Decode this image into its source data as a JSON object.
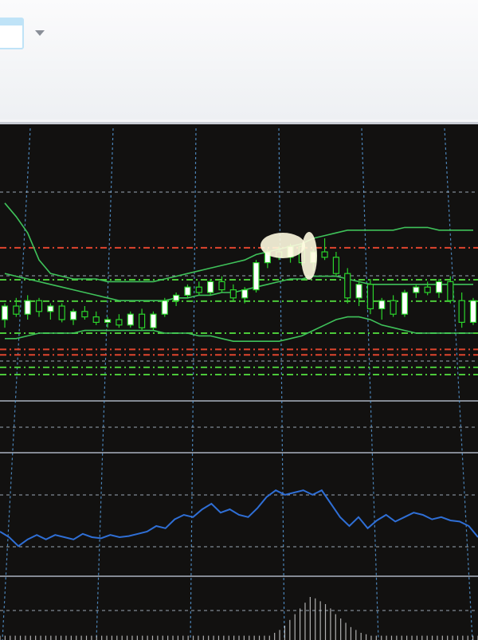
{
  "toolbar": {
    "icons": [
      "chart-window-icon",
      "chevron-down-icon"
    ]
  },
  "colors": {
    "background": "#121110",
    "grid": "#5aa0e0",
    "candle_bull": "#ffffff",
    "candle_bear": "#2bd42b",
    "bands": "#3fc25a",
    "level_red": "#e0452e",
    "level_green": "#4cc93a",
    "indicator": "#2f6fd6",
    "volume": "#d8d8d8"
  },
  "chart_data": [
    {
      "type": "candlestick",
      "title": "",
      "grid": true,
      "ylim": [
        0,
        100
      ],
      "ohlc": [
        [
          30,
          36,
          27,
          35
        ],
        [
          35,
          38,
          31,
          32
        ],
        [
          32,
          39,
          30,
          37
        ],
        [
          37,
          38,
          31,
          33
        ],
        [
          33,
          36,
          30,
          35
        ],
        [
          35,
          36,
          29,
          30
        ],
        [
          30,
          34,
          28,
          33
        ],
        [
          33,
          35,
          30,
          31
        ],
        [
          31,
          33,
          28,
          29
        ],
        [
          29,
          31,
          27,
          30
        ],
        [
          30,
          32,
          27,
          28
        ],
        [
          28,
          33,
          27,
          32
        ],
        [
          32,
          34,
          26,
          27
        ],
        [
          27,
          33,
          26,
          32
        ],
        [
          32,
          38,
          31,
          37
        ],
        [
          37,
          40,
          35,
          39
        ],
        [
          39,
          43,
          38,
          42
        ],
        [
          42,
          44,
          39,
          40
        ],
        [
          40,
          45,
          39,
          44
        ],
        [
          44,
          46,
          40,
          41
        ],
        [
          41,
          43,
          37,
          38
        ],
        [
          38,
          42,
          36,
          41
        ],
        [
          41,
          52,
          40,
          51
        ],
        [
          51,
          56,
          49,
          55
        ],
        [
          55,
          57,
          52,
          53
        ],
        [
          53,
          58,
          51,
          57
        ],
        [
          57,
          58,
          50,
          51
        ],
        [
          51,
          56,
          48,
          55
        ],
        [
          55,
          60,
          52,
          53
        ],
        [
          53,
          55,
          46,
          47
        ],
        [
          47,
          49,
          36,
          38
        ],
        [
          38,
          44,
          35,
          43
        ],
        [
          43,
          45,
          32,
          34
        ],
        [
          34,
          38,
          30,
          37
        ],
        [
          37,
          39,
          31,
          32
        ],
        [
          32,
          41,
          31,
          40
        ],
        [
          40,
          43,
          38,
          42
        ],
        [
          42,
          44,
          39,
          40
        ],
        [
          40,
          45,
          38,
          44
        ],
        [
          44,
          46,
          36,
          37
        ],
        [
          37,
          40,
          27,
          29
        ],
        [
          29,
          38,
          28,
          37
        ]
      ],
      "bands": {
        "upper": [
          73,
          68,
          62,
          52,
          47,
          46,
          45,
          45,
          45,
          44,
          44,
          44,
          44,
          44,
          45,
          46,
          47,
          48,
          49,
          50,
          51,
          52,
          54,
          55,
          56,
          57,
          58,
          60,
          61,
          62,
          63,
          63,
          63,
          63,
          63,
          64,
          64,
          64,
          63,
          63,
          63,
          63
        ],
        "middle": [
          47,
          46,
          45,
          44,
          43,
          42,
          41,
          40,
          39,
          38,
          37,
          37,
          37,
          37,
          37,
          38,
          38,
          39,
          39,
          40,
          40,
          41,
          42,
          43,
          44,
          45,
          45,
          46,
          46,
          46,
          45,
          44,
          43,
          43,
          43,
          43,
          43,
          43,
          43,
          43,
          43,
          43
        ],
        "lower": [
          23,
          23,
          24,
          25,
          25,
          25,
          25,
          26,
          26,
          26,
          26,
          26,
          26,
          26,
          25,
          25,
          25,
          24,
          24,
          23,
          22,
          22,
          22,
          22,
          22,
          23,
          24,
          26,
          28,
          30,
          31,
          31,
          30,
          28,
          27,
          26,
          25,
          25,
          25,
          25,
          25,
          25
        ]
      },
      "levels": [
        {
          "value": 56.5,
          "color": "red"
        },
        {
          "value": 44.7,
          "color": "green"
        },
        {
          "value": 36.8,
          "color": "green"
        },
        {
          "value": 25,
          "color": "green"
        },
        {
          "value": 19,
          "color": "red"
        },
        {
          "value": 17,
          "color": "red"
        },
        {
          "value": 12.4,
          "color": "green"
        },
        {
          "value": 9.7,
          "color": "green"
        }
      ]
    },
    {
      "type": "line",
      "title": "",
      "grid": true,
      "ylim": [
        0,
        100
      ],
      "values": [
        35,
        30,
        22,
        28,
        32,
        28,
        32,
        30,
        28,
        33,
        30,
        29,
        32,
        30,
        31,
        33,
        35,
        40,
        38,
        46,
        50,
        48,
        55,
        60,
        52,
        55,
        50,
        48,
        56,
        66,
        72,
        68,
        70,
        72,
        68,
        72,
        60,
        48,
        40,
        48,
        38,
        45,
        50,
        44,
        48,
        52,
        50,
        46,
        48,
        45,
        44,
        40,
        30
      ]
    },
    {
      "type": "bar",
      "title": "",
      "values": [
        6,
        6,
        6,
        6,
        6,
        6,
        6,
        6,
        6,
        6,
        6,
        6,
        6,
        6,
        6,
        6,
        6,
        6,
        6,
        6,
        6,
        6,
        6,
        6,
        6,
        6,
        6,
        6,
        6,
        6,
        6,
        6,
        6,
        6,
        6,
        6,
        6,
        6,
        6,
        6,
        6,
        6,
        6,
        6,
        6,
        6,
        6,
        6,
        6,
        6,
        6,
        6,
        6,
        6,
        10,
        14,
        20,
        28,
        36,
        44,
        52,
        60,
        58,
        54,
        50,
        44,
        36,
        30,
        24,
        18,
        14,
        10,
        8,
        6,
        6,
        6,
        6,
        6,
        6,
        6,
        6,
        6,
        6,
        6,
        6,
        6,
        6,
        6,
        6,
        6,
        6,
        6,
        6,
        6,
        6
      ]
    }
  ]
}
